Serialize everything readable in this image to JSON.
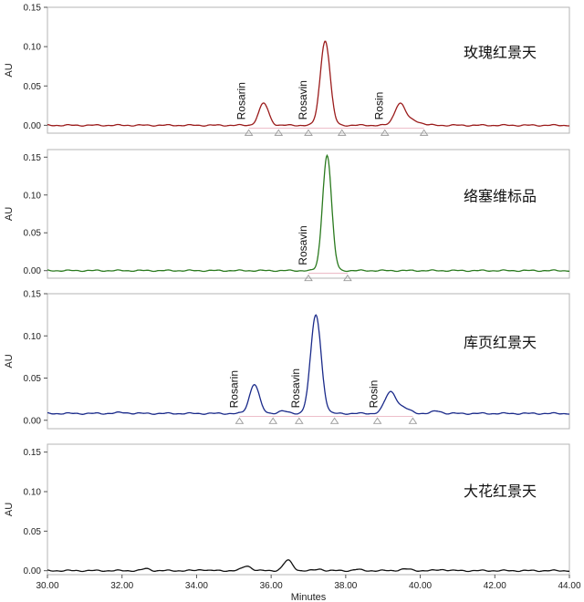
{
  "chart_data": [
    {
      "type": "line",
      "title": "玫瑰红景天",
      "ylabel": "AU",
      "ylim": [
        -0.01,
        0.15
      ],
      "yticks": [
        "0.00",
        "0.05",
        "0.10",
        "0.15"
      ],
      "xlim": [
        30,
        44
      ],
      "color": "#9b1c1c",
      "baseline": 0.0,
      "peaks": [
        {
          "rt": 35.8,
          "height": 0.028,
          "width": 0.13
        },
        {
          "rt": 37.45,
          "height": 0.108,
          "width": 0.13
        },
        {
          "rt": 39.45,
          "height": 0.027,
          "width": 0.14
        },
        {
          "rt": 39.8,
          "height": 0.006,
          "width": 0.2
        }
      ],
      "labels": [
        {
          "text": "Rosarin",
          "rt": 35.3
        },
        {
          "text": "Rosavin",
          "rt": 36.95
        },
        {
          "text": "Rosin",
          "rt": 39.0
        }
      ],
      "markers": [
        35.4,
        36.2,
        37.0,
        37.9,
        39.05,
        40.1
      ]
    },
    {
      "type": "line",
      "title": "络塞维标品",
      "ylabel": "AU",
      "ylim": [
        -0.01,
        0.16
      ],
      "yticks": [
        "0.00",
        "0.05",
        "0.10",
        "0.15"
      ],
      "xlim": [
        30,
        44
      ],
      "color": "#2a7a1e",
      "baseline": 0.0,
      "peaks": [
        {
          "rt": 37.5,
          "height": 0.153,
          "width": 0.12
        }
      ],
      "labels": [
        {
          "text": "Rosavin",
          "rt": 36.95
        }
      ],
      "markers": [
        37.0,
        38.05
      ]
    },
    {
      "type": "line",
      "title": "库页红景天",
      "ylabel": "AU",
      "ylim": [
        -0.01,
        0.15
      ],
      "yticks": [
        "0.00",
        "0.05",
        "0.10",
        "0.15"
      ],
      "xlim": [
        30,
        44
      ],
      "color": "#1a2a8a",
      "baseline": 0.008,
      "peaks": [
        {
          "rt": 35.55,
          "height": 0.035,
          "width": 0.13
        },
        {
          "rt": 36.3,
          "height": 0.003,
          "width": 0.12
        },
        {
          "rt": 37.2,
          "height": 0.117,
          "width": 0.14
        },
        {
          "rt": 39.2,
          "height": 0.025,
          "width": 0.15
        },
        {
          "rt": 39.55,
          "height": 0.006,
          "width": 0.18
        },
        {
          "rt": 40.45,
          "height": 0.003,
          "width": 0.12
        },
        {
          "rt": 32.0,
          "height": 0.001,
          "width": 0.2
        }
      ],
      "labels": [
        {
          "text": "Rosarin",
          "rt": 35.1
        },
        {
          "text": "Rosavin",
          "rt": 36.75
        },
        {
          "text": "Rosin",
          "rt": 38.85
        }
      ],
      "markers": [
        35.15,
        36.05,
        36.75,
        37.7,
        38.85,
        39.8
      ]
    },
    {
      "type": "line",
      "title": "大花红景天",
      "ylabel": "AU",
      "ylim": [
        -0.005,
        0.16
      ],
      "yticks": [
        "0.00",
        "0.05",
        "0.10",
        "0.15"
      ],
      "xlim": [
        30,
        44
      ],
      "xticks": [
        "30.00",
        "32.00",
        "34.00",
        "36.00",
        "38.00",
        "40.00",
        "42.00",
        "44.00"
      ],
      "xlabel": "Minutes",
      "color": "#111111",
      "baseline": 0.0,
      "peaks": [
        {
          "rt": 32.65,
          "height": 0.0025,
          "width": 0.1
        },
        {
          "rt": 34.15,
          "height": 0.0015,
          "width": 0.1
        },
        {
          "rt": 35.35,
          "height": 0.006,
          "width": 0.12
        },
        {
          "rt": 36.45,
          "height": 0.013,
          "width": 0.12
        },
        {
          "rt": 37.3,
          "height": 0.002,
          "width": 0.1
        },
        {
          "rt": 38.3,
          "height": 0.0015,
          "width": 0.1
        },
        {
          "rt": 39.6,
          "height": 0.002,
          "width": 0.15
        },
        {
          "rt": 40.6,
          "height": 0.0015,
          "width": 0.12
        }
      ],
      "labels": [],
      "markers": []
    }
  ]
}
